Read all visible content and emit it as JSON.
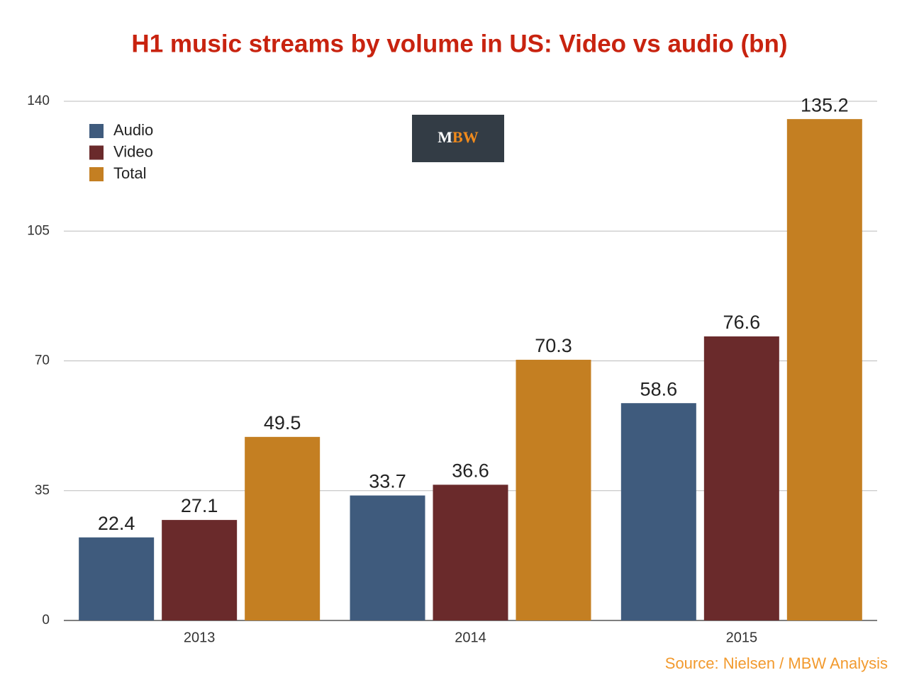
{
  "chart_data": {
    "type": "bar",
    "title": "H1 music streams by volume in US: Video vs audio (bn)",
    "categories": [
      "2013",
      "2014",
      "2015"
    ],
    "series": [
      {
        "name": "Audio",
        "color": "#3f5b7d",
        "values": [
          22.4,
          33.7,
          58.6
        ]
      },
      {
        "name": "Video",
        "color": "#6a2a2b",
        "values": [
          27.1,
          36.6,
          76.6
        ]
      },
      {
        "name": "Total",
        "color": "#c47f22",
        "values": [
          49.5,
          70.3,
          135.2
        ]
      }
    ],
    "ylim": [
      0,
      140
    ],
    "yticks": [
      0,
      35,
      70,
      105,
      140
    ],
    "grid": true,
    "legend": "top-left",
    "logo": "MBW",
    "source": "Source: Nielsen / MBW Analysis"
  }
}
